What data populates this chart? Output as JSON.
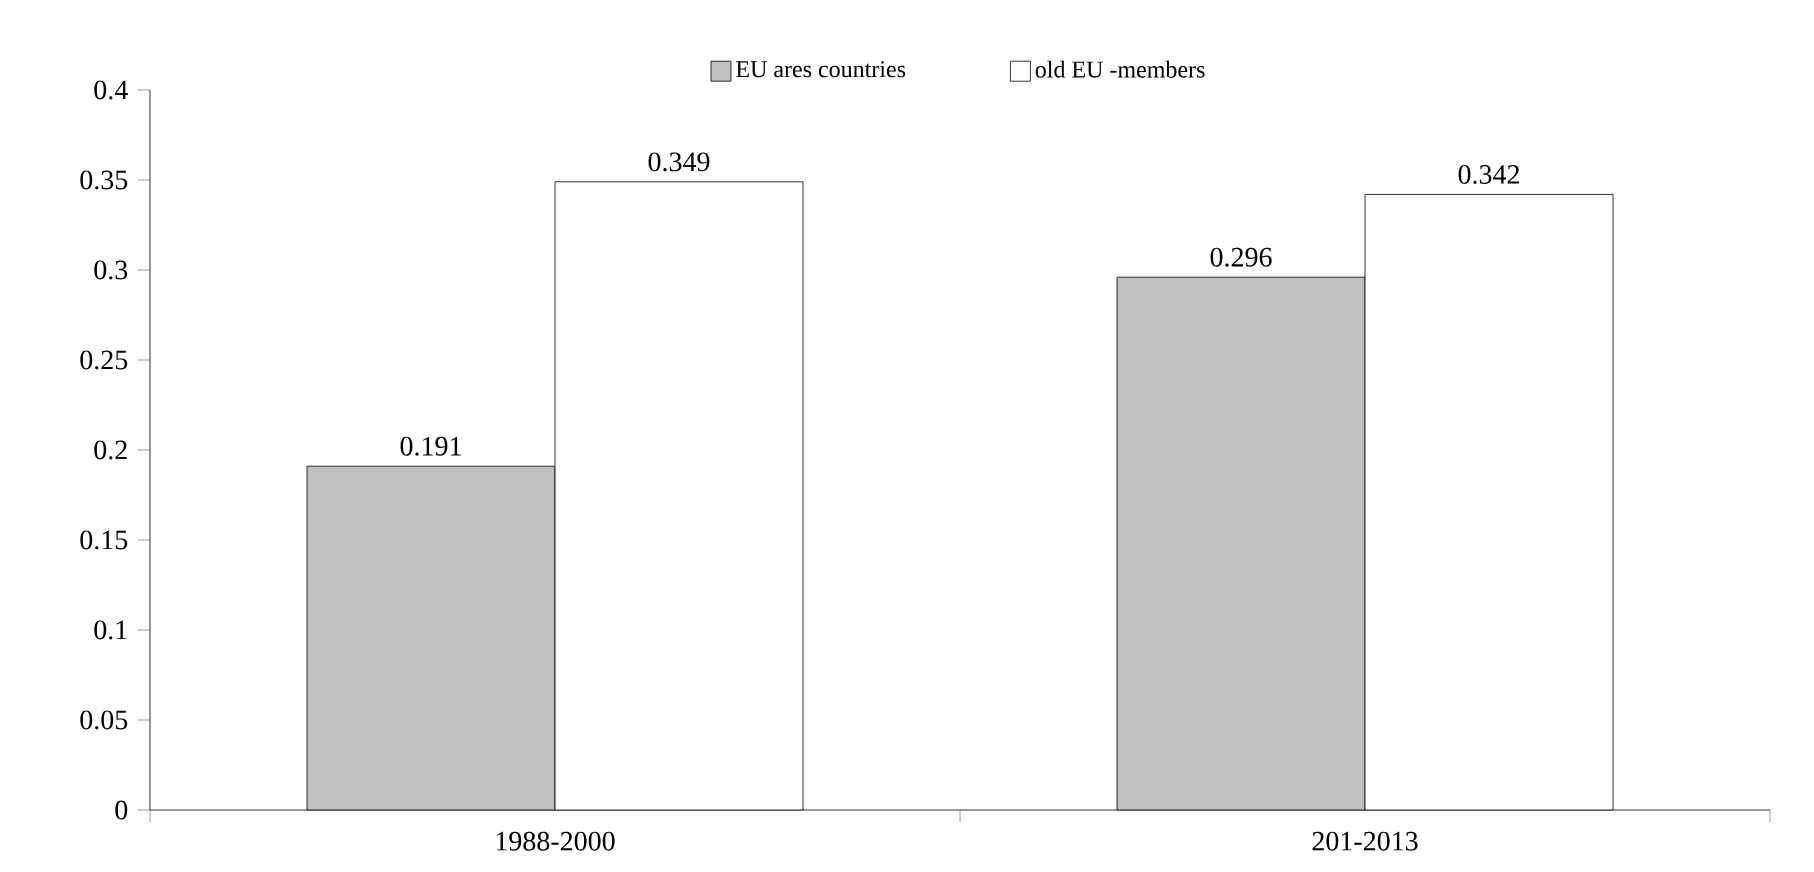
{
  "chart_data": {
    "type": "bar",
    "categories": [
      "1988-2000",
      "201-2013"
    ],
    "series": [
      {
        "name": "EU ares countries",
        "color": "#c0c0c0",
        "values": [
          0.191,
          0.296
        ]
      },
      {
        "name": "old EU -members",
        "color": "#ffffff",
        "values": [
          0.349,
          0.342
        ]
      }
    ],
    "ylim": [
      0,
      0.4
    ],
    "yticks": [
      0,
      0.05,
      0.1,
      0.15,
      0.2,
      0.25,
      0.3,
      0.35,
      0.4
    ],
    "data_labels": true,
    "legend": "top",
    "grid": false
  }
}
